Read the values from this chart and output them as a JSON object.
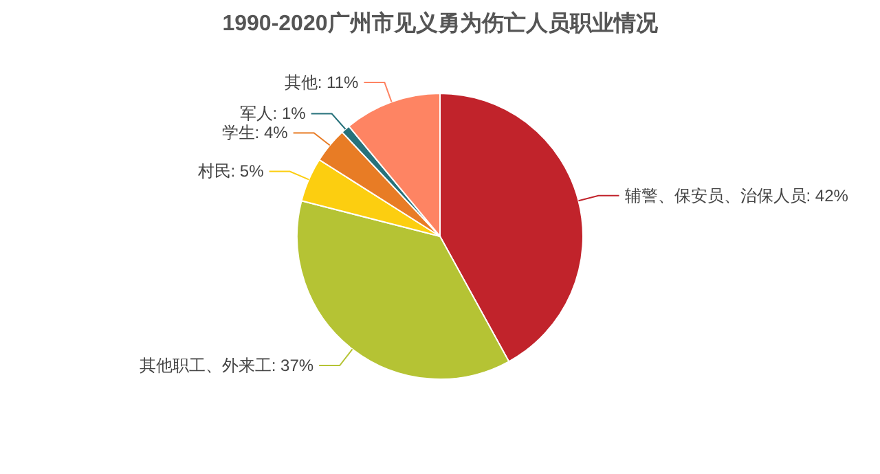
{
  "chart_data": {
    "type": "pie",
    "title": "1990-2020广州市见义勇为伤亡人员职业情况",
    "categories": [
      "辅警、保安员、治保人员",
      "其他职工、外来工",
      "村民",
      "学生",
      "军人",
      "其他"
    ],
    "values": [
      42,
      37,
      5,
      4,
      1,
      11
    ],
    "colors": [
      "#c1232b",
      "#b5c334",
      "#fcce10",
      "#e87c25",
      "#27727b",
      "#fe8463"
    ],
    "value_labels": [
      "42%",
      "37%",
      "5%",
      "4%",
      "1%",
      "11%"
    ]
  }
}
